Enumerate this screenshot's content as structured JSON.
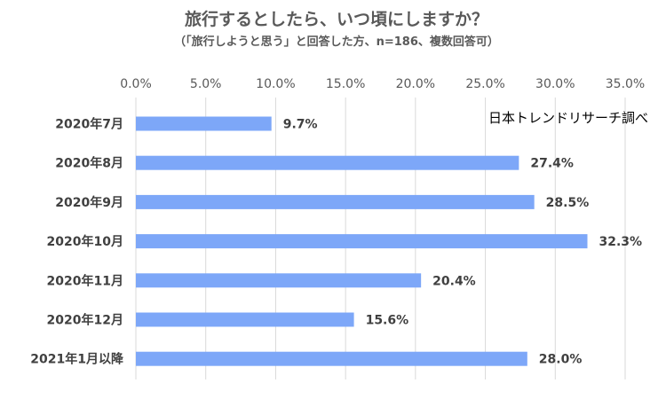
{
  "chart_data": {
    "type": "bar",
    "orientation": "horizontal",
    "title": "旅行するとしたら、いつ頃にしますか？",
    "subtitle": "（「旅行しようと思う」と回答した方、n=186、複数回答可）",
    "source": "日本トレンドリサーチ調べ",
    "categories": [
      "2020年7月",
      "2020年8月",
      "2020年9月",
      "2020年10月",
      "2020年11月",
      "2020年12月",
      "2021年1月以降"
    ],
    "values": [
      9.7,
      27.4,
      28.5,
      32.3,
      20.4,
      15.6,
      28.0
    ],
    "value_labels": [
      "9.7%",
      "27.4%",
      "28.5%",
      "32.3%",
      "20.4%",
      "15.6%",
      "28.0%"
    ],
    "x_ticks": [
      "0.0%",
      "5.0%",
      "10.0%",
      "15.0%",
      "20.0%",
      "25.0%",
      "30.0%",
      "35.0%"
    ],
    "xlim": [
      0,
      35
    ],
    "x_axis_position": "top",
    "grid": true,
    "bar_color": "#7da7f8"
  }
}
